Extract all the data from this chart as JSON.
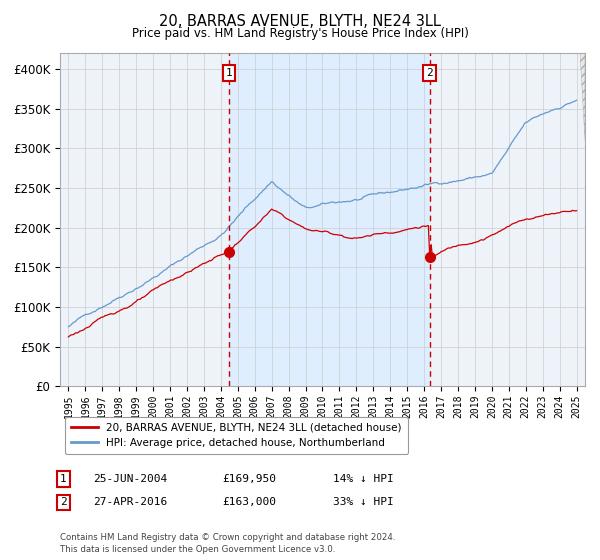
{
  "title": "20, BARRAS AVENUE, BLYTH, NE24 3LL",
  "subtitle": "Price paid vs. HM Land Registry's House Price Index (HPI)",
  "legend_line1": "20, BARRAS AVENUE, BLYTH, NE24 3LL (detached house)",
  "legend_line2": "HPI: Average price, detached house, Northumberland",
  "marker1_date": 2004.48,
  "marker1_label": "1",
  "marker1_text": "25-JUN-2004",
  "marker1_price": "£169,950",
  "marker1_pct": "14% ↓ HPI",
  "marker1_value": 169950,
  "marker2_date": 2016.32,
  "marker2_label": "2",
  "marker2_text": "27-APR-2016",
  "marker2_price": "£163,000",
  "marker2_pct": "33% ↓ HPI",
  "marker2_value": 163000,
  "note": "Contains HM Land Registry data © Crown copyright and database right 2024.\nThis data is licensed under the Open Government Licence v3.0.",
  "red_color": "#cc0000",
  "blue_color": "#6699cc",
  "shade_color": "#ddeeff",
  "bg_plot": "#eef3fa",
  "background_color": "#ffffff",
  "grid_color": "#cccccc",
  "ylim_min": 0,
  "ylim_max": 420000,
  "xlim_min": 1994.5,
  "xlim_max": 2025.5
}
